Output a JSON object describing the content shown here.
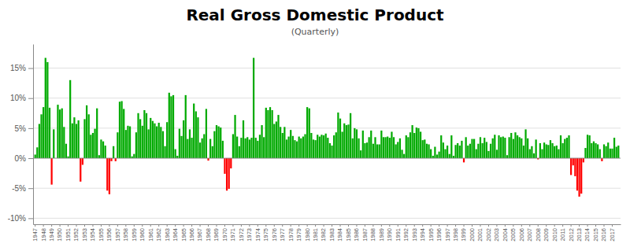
{
  "chart_data": {
    "type": "bar",
    "title": "Real Gross Domestic Product",
    "subtitle": "(Quarterly)",
    "ylim": [
      -11,
      19
    ],
    "yticks": [
      {
        "value": -10,
        "label": "-10%"
      },
      {
        "value": -5,
        "label": "-5%"
      },
      {
        "value": 0,
        "label": "0%"
      },
      {
        "value": 5,
        "label": "5%"
      },
      {
        "value": 10,
        "label": "10%"
      },
      {
        "value": 15,
        "label": "15%"
      }
    ],
    "grid": true,
    "categories": [
      "1947",
      null,
      null,
      null,
      "1948",
      null,
      null,
      null,
      "1949",
      null,
      null,
      null,
      "1950",
      null,
      null,
      null,
      "1951",
      null,
      null,
      null,
      "1952",
      null,
      null,
      null,
      "1953",
      null,
      null,
      null,
      "1954",
      null,
      null,
      null,
      "1955",
      null,
      null,
      null,
      "1956",
      null,
      null,
      null,
      "1957",
      null,
      null,
      null,
      "1958",
      null,
      null,
      null,
      "1959",
      null,
      null,
      null,
      "1960",
      null,
      null,
      null,
      "1961",
      null,
      null,
      null,
      "1962",
      null,
      null,
      null,
      "1963",
      null,
      null,
      null,
      "1964",
      null,
      null,
      null,
      "1965",
      null,
      null,
      null,
      "1966",
      null,
      null,
      null,
      "1967",
      null,
      null,
      null,
      "1968",
      null,
      null,
      null,
      "1969",
      null,
      null,
      null,
      "1970",
      null,
      null,
      null,
      "1971",
      null,
      null,
      null,
      "1972",
      null,
      null,
      null,
      "1973",
      null,
      null,
      null,
      "1974",
      null,
      null,
      null,
      "1975",
      null,
      null,
      null,
      "1976",
      null,
      null,
      null,
      "1977",
      null,
      null,
      null,
      "1978",
      null,
      null,
      null,
      "1979",
      null,
      null,
      null,
      "1980",
      null,
      null,
      null,
      "1981",
      null,
      null,
      null,
      "1982",
      null,
      null,
      null,
      "1983",
      null,
      null,
      null,
      "1984",
      null,
      null,
      null,
      "1985",
      null,
      null,
      null,
      "1986",
      null,
      null,
      null,
      "1987",
      null,
      null,
      null,
      "1988",
      null,
      null,
      null,
      "1989",
      null,
      null,
      null,
      "1990",
      null,
      null,
      null,
      "1991",
      null,
      null,
      null,
      "1992",
      null,
      null,
      null,
      "1993",
      null,
      null,
      null,
      "1994",
      null,
      null,
      null,
      "1995",
      null,
      null,
      null,
      "1996",
      null,
      null,
      null,
      "1997",
      null,
      null,
      null,
      "1998",
      null,
      null,
      null,
      "1999",
      null,
      null,
      null,
      "2000",
      null,
      null,
      null,
      "2001",
      null,
      null,
      null,
      "2002",
      null,
      null,
      null,
      "2003",
      null,
      null,
      null,
      "2004",
      null,
      null,
      null,
      "2005",
      null,
      null,
      null,
      "2006",
      null,
      null,
      null,
      "2007",
      null,
      null,
      null,
      "2008",
      null,
      null,
      null,
      "2009",
      null,
      null,
      null,
      "2010",
      null,
      null,
      null,
      "2011",
      null,
      null,
      null,
      "2012",
      null,
      null,
      null,
      "2013",
      null,
      null,
      null,
      "2014",
      null,
      null,
      null,
      "2015",
      null,
      null,
      null,
      "2016",
      null,
      null,
      null,
      "2017",
      null,
      null,
      null
    ],
    "values": [
      0.6,
      1.8,
      5.7,
      7.3,
      8.5,
      16.7,
      16.0,
      8.4,
      -4.4,
      4.8,
      0.0,
      8.9,
      8.1,
      8.3,
      5.2,
      2.4,
      0.3,
      13.0,
      5.8,
      6.8,
      5.7,
      6.3,
      -3.9,
      -1.1,
      6.5,
      8.8,
      7.3,
      3.9,
      4.2,
      4.9,
      8.3,
      0.5,
      3.1,
      2.8,
      2.1,
      -5.4,
      -6.0,
      -0.5,
      2.0,
      -0.5,
      4.3,
      9.4,
      9.5,
      8.2,
      4.7,
      5.4,
      5.3,
      0.3,
      0.7,
      4.3,
      7.5,
      6.5,
      5.4,
      8.0,
      7.5,
      4.8,
      6.7,
      6.2,
      5.8,
      5.3,
      5.9,
      5.2,
      4.5,
      2.0,
      6.0,
      10.9,
      10.3,
      10.5,
      1.5,
      0.4,
      4.9,
      3.7,
      6.3,
      10.5,
      3.2,
      4.8,
      3.4,
      9.1,
      7.8,
      6.8,
      2.6,
      3.3,
      4.0,
      8.2,
      -0.4,
      3.2,
      2.0,
      4.5,
      5.5,
      5.3,
      5.1,
      2.9,
      -2.6,
      -5.4,
      -5.1,
      -1.7,
      4.0,
      7.2,
      3.6,
      2.0,
      3.4,
      6.3,
      3.3,
      3.5,
      3.1,
      3.4,
      16.7,
      3.4,
      2.9,
      3.9,
      5.5,
      3.5,
      8.4,
      8.0,
      8.5,
      8.0,
      5.7,
      6.1,
      7.2,
      5.2,
      4.2,
      5.2,
      3.1,
      3.6,
      4.7,
      3.7,
      3.0,
      2.8,
      3.6,
      3.3,
      3.6,
      4.0,
      8.5,
      8.3,
      4.2,
      3.1,
      3.0,
      3.9,
      3.6,
      3.9,
      3.8,
      4.1,
      3.4,
      2.5,
      2.1,
      3.8,
      4.3,
      7.6,
      6.6,
      4.4,
      5.8,
      5.5,
      5.6,
      7.5,
      3.3,
      5.0,
      4.8,
      3.3,
      1.3,
      4.6,
      2.5,
      2.6,
      3.5,
      4.6,
      2.4,
      3.5,
      2.3,
      2.3,
      4.6,
      3.5,
      3.5,
      3.6,
      3.4,
      4.4,
      3.5,
      2.3,
      2.7,
      3.3,
      1.4,
      0.7,
      3.8,
      3.5,
      4.3,
      5.5,
      4.2,
      5.1,
      5.0,
      4.4,
      3.0,
      3.1,
      2.4,
      2.3,
      1.5,
      0.4,
      1.9,
      0.6,
      1.1,
      3.8,
      2.6,
      1.5,
      2.1,
      0.7,
      3.8,
      0.4,
      2.2,
      2.5,
      2.1,
      2.9,
      -0.7,
      3.5,
      2.1,
      2.4,
      3.2,
      3.2,
      1.5,
      2.4,
      3.5,
      2.5,
      3.4,
      2.7,
      1.2,
      2.4,
      3.3,
      3.9,
      1.4,
      3.8,
      3.5,
      3.6,
      3.4,
      0.5,
      3.5,
      4.2,
      3.2,
      4.3,
      3.8,
      3.5,
      3.3,
      2.1,
      4.8,
      3.3,
      1.5,
      2.0,
      0.8,
      3.1,
      -0.2,
      2.5,
      1.5,
      2.6,
      2.3,
      2.2,
      3.0,
      2.5,
      2.0,
      2.1,
      1.5,
      3.8,
      2.5,
      3.2,
      3.4,
      3.8,
      -2.8,
      -1.2,
      -3.0,
      -5.4,
      -6.4,
      -5.9,
      -0.7,
      1.7,
      3.9,
      3.8,
      2.5,
      2.8,
      2.5,
      2.3,
      1.5,
      -0.5,
      2.3,
      2.0,
      2.6,
      1.6,
      1.6,
      3.4,
      1.9,
      2.1
    ],
    "colors": [
      "#00AA00",
      "#00AA00",
      "#00AA00",
      "#00AA00",
      "#00AA00",
      "#00AA00",
      "#00AA00",
      "#00AA00",
      "#FF0000",
      "#00AA00",
      "#00AA00",
      "#00AA00",
      "#00AA00",
      "#00AA00",
      "#00AA00",
      "#00AA00",
      "#00AA00",
      "#00AA00",
      "#00AA00",
      "#00AA00",
      "#00AA00",
      "#00AA00",
      "#FF0000",
      "#FF0000",
      "#00AA00",
      "#00AA00",
      "#00AA00",
      "#00AA00",
      "#00AA00",
      "#00AA00",
      "#00AA00",
      "#00AA00",
      "#00AA00",
      "#00AA00",
      "#00AA00",
      "#FF0000",
      "#FF0000",
      "#FF0000",
      "#00AA00",
      "#FF0000",
      "#00AA00",
      "#00AA00",
      "#00AA00",
      "#00AA00",
      "#00AA00",
      "#00AA00",
      "#00AA00",
      "#00AA00",
      "#00AA00",
      "#00AA00",
      "#00AA00",
      "#00AA00",
      "#00AA00",
      "#00AA00",
      "#00AA00",
      "#00AA00",
      "#00AA00",
      "#00AA00",
      "#00AA00",
      "#00AA00",
      "#00AA00",
      "#00AA00",
      "#00AA00",
      "#00AA00",
      "#00AA00",
      "#00AA00",
      "#00AA00",
      "#00AA00",
      "#00AA00",
      "#00AA00",
      "#00AA00",
      "#00AA00",
      "#00AA00",
      "#00AA00",
      "#00AA00",
      "#00AA00",
      "#00AA00",
      "#00AA00",
      "#00AA00",
      "#00AA00",
      "#00AA00",
      "#00AA00",
      "#00AA00",
      "#00AA00",
      "#FF0000",
      "#00AA00",
      "#00AA00",
      "#00AA00",
      "#00AA00",
      "#00AA00",
      "#00AA00",
      "#00AA00",
      "#FF0000",
      "#FF0000",
      "#FF0000",
      "#FF0000",
      "#00AA00",
      "#00AA00",
      "#00AA00",
      "#00AA00",
      "#00AA00",
      "#00AA00",
      "#00AA00",
      "#00AA00",
      "#00AA00",
      "#00AA00",
      "#00AA00",
      "#00AA00",
      "#00AA00",
      "#00AA00",
      "#00AA00",
      "#00AA00",
      "#00AA00",
      "#00AA00",
      "#00AA00",
      "#00AA00",
      "#00AA00",
      "#00AA00",
      "#00AA00",
      "#00AA00",
      "#00AA00",
      "#00AA00",
      "#00AA00",
      "#00AA00",
      "#00AA00",
      "#00AA00",
      "#00AA00",
      "#00AA00",
      "#00AA00",
      "#00AA00",
      "#00AA00",
      "#00AA00",
      "#00AA00",
      "#00AA00",
      "#00AA00",
      "#00AA00",
      "#00AA00",
      "#00AA00",
      "#00AA00",
      "#00AA00",
      "#00AA00",
      "#00AA00",
      "#00AA00",
      "#00AA00",
      "#00AA00",
      "#00AA00",
      "#00AA00",
      "#00AA00",
      "#00AA00",
      "#00AA00",
      "#00AA00",
      "#00AA00",
      "#00AA00",
      "#00AA00",
      "#00AA00",
      "#00AA00",
      "#00AA00",
      "#00AA00",
      "#00AA00",
      "#00AA00",
      "#00AA00",
      "#00AA00",
      "#00AA00",
      "#00AA00",
      "#00AA00",
      "#00AA00",
      "#00AA00",
      "#00AA00",
      "#00AA00",
      "#00AA00",
      "#00AA00",
      "#00AA00",
      "#00AA00",
      "#00AA00",
      "#00AA00",
      "#00AA00",
      "#00AA00",
      "#00AA00",
      "#00AA00",
      "#00AA00",
      "#00AA00",
      "#00AA00",
      "#00AA00",
      "#00AA00",
      "#00AA00",
      "#00AA00",
      "#00AA00",
      "#00AA00",
      "#00AA00",
      "#00AA00",
      "#00AA00",
      "#00AA00",
      "#00AA00",
      "#00AA00",
      "#00AA00",
      "#00AA00",
      "#00AA00",
      "#00AA00",
      "#00AA00",
      "#00AA00",
      "#00AA00",
      "#00AA00",
      "#00AA00",
      "#00AA00",
      "#00AA00",
      "#00AA00",
      "#00AA00",
      "#00AA00",
      "#FF0000",
      "#00AA00",
      "#00AA00",
      "#00AA00",
      "#00AA00",
      "#00AA00",
      "#00AA00",
      "#00AA00",
      "#00AA00",
      "#00AA00",
      "#00AA00",
      "#00AA00",
      "#00AA00",
      "#00AA00",
      "#00AA00",
      "#00AA00",
      "#00AA00",
      "#00AA00",
      "#00AA00",
      "#00AA00",
      "#00AA00",
      "#00AA00",
      "#00AA00",
      "#00AA00",
      "#00AA00",
      "#00AA00",
      "#00AA00",
      "#00AA00",
      "#00AA00",
      "#00AA00",
      "#00AA00",
      "#00AA00",
      "#00AA00",
      "#00AA00",
      "#00AA00",
      "#00AA00",
      "#FF0000",
      "#00AA00",
      "#00AA00",
      "#00AA00",
      "#00AA00",
      "#00AA00",
      "#00AA00",
      "#00AA00",
      "#00AA00",
      "#00AA00",
      "#00AA00",
      "#00AA00",
      "#00AA00",
      "#00AA00",
      "#00AA00",
      "#00AA00",
      "#FF0000",
      "#FF0000",
      "#FF0000",
      "#FF0000",
      "#FF0000",
      "#FF0000",
      "#FF0000",
      "#00AA00",
      "#00AA00",
      "#00AA00",
      "#00AA00",
      "#00AA00",
      "#00AA00",
      "#00AA00",
      "#00AA00",
      "#FF0000",
      "#00AA00",
      "#00AA00",
      "#00AA00",
      "#00AA00",
      "#00AA00",
      "#00AA00",
      "#00AA00",
      "#00AA00"
    ]
  }
}
